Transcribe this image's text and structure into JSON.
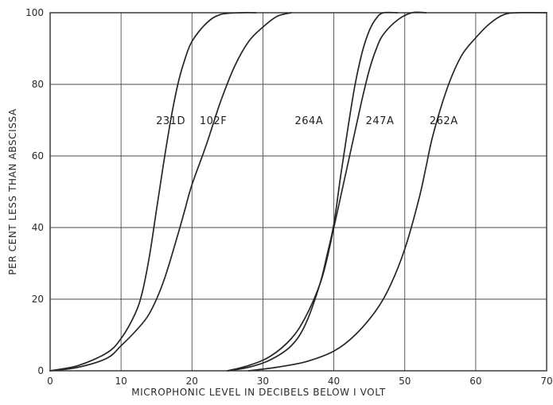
{
  "chart_data": {
    "type": "line",
    "title": "",
    "xlabel": "MICROPHONIC LEVEL IN DECIBELS BELOW I VOLT",
    "ylabel": "PER CENT LESS THAN ABSCISSA",
    "xlim": [
      0,
      70
    ],
    "ylim": [
      0,
      100
    ],
    "x_ticks": [
      "0",
      "10",
      "20",
      "30",
      "40",
      "50",
      "60",
      "70"
    ],
    "y_ticks": [
      "0",
      "20",
      "40",
      "60",
      "80",
      "100"
    ],
    "grid": true,
    "series": [
      {
        "name": "231D",
        "label_at": [
          17,
          70
        ],
        "points": [
          [
            0,
            0
          ],
          [
            4,
            1.5
          ],
          [
            8,
            5
          ],
          [
            10,
            9
          ],
          [
            12,
            16
          ],
          [
            13,
            22
          ],
          [
            14,
            32
          ],
          [
            15,
            45
          ],
          [
            16,
            58
          ],
          [
            17,
            70
          ],
          [
            18,
            80
          ],
          [
            19,
            87
          ],
          [
            20,
            92
          ],
          [
            22,
            97
          ],
          [
            24,
            99.5
          ],
          [
            27,
            100
          ],
          [
            29,
            100
          ]
        ]
      },
      {
        "name": "102F",
        "label_at": [
          23,
          70
        ],
        "points": [
          [
            0,
            0
          ],
          [
            4,
            1
          ],
          [
            8,
            3.5
          ],
          [
            10,
            7
          ],
          [
            12,
            11
          ],
          [
            14,
            16
          ],
          [
            16,
            25
          ],
          [
            18,
            38
          ],
          [
            19,
            45
          ],
          [
            20,
            52
          ],
          [
            22,
            63
          ],
          [
            24,
            75
          ],
          [
            26,
            85
          ],
          [
            28,
            92
          ],
          [
            30,
            96
          ],
          [
            32,
            99
          ],
          [
            34,
            100
          ]
        ]
      },
      {
        "name": "264A",
        "label_at": [
          36.5,
          70
        ],
        "points": [
          [
            25,
            0
          ],
          [
            28,
            1
          ],
          [
            31,
            3
          ],
          [
            34,
            7
          ],
          [
            36,
            13
          ],
          [
            38,
            24
          ],
          [
            39,
            32
          ],
          [
            40,
            41
          ],
          [
            41,
            55
          ],
          [
            42,
            68
          ],
          [
            43,
            80
          ],
          [
            44,
            89
          ],
          [
            45,
            95
          ],
          [
            46,
            98.5
          ],
          [
            47,
            100
          ],
          [
            49,
            100
          ]
        ]
      },
      {
        "name": "247A",
        "label_at": [
          46.5,
          70
        ],
        "points": [
          [
            25,
            0
          ],
          [
            28,
            1.5
          ],
          [
            31,
            4
          ],
          [
            34,
            9
          ],
          [
            36,
            15
          ],
          [
            38,
            24
          ],
          [
            39,
            31
          ],
          [
            40,
            40
          ],
          [
            41,
            49
          ],
          [
            42,
            58
          ],
          [
            43,
            67
          ],
          [
            44,
            76
          ],
          [
            45,
            84
          ],
          [
            46,
            90
          ],
          [
            47,
            94
          ],
          [
            49,
            98
          ],
          [
            51,
            100
          ],
          [
            53,
            100
          ]
        ]
      },
      {
        "name": "262A",
        "label_at": [
          55.5,
          70
        ],
        "points": [
          [
            28,
            0
          ],
          [
            32,
            1
          ],
          [
            36,
            2.5
          ],
          [
            40,
            5.5
          ],
          [
            43,
            10
          ],
          [
            46,
            17
          ],
          [
            48,
            24
          ],
          [
            50,
            34
          ],
          [
            52,
            48
          ],
          [
            53,
            57
          ],
          [
            54,
            66
          ],
          [
            56,
            79
          ],
          [
            58,
            88
          ],
          [
            60,
            93
          ],
          [
            62,
            97
          ],
          [
            64,
            99.5
          ],
          [
            66,
            100
          ],
          [
            70,
            100
          ]
        ]
      }
    ]
  }
}
